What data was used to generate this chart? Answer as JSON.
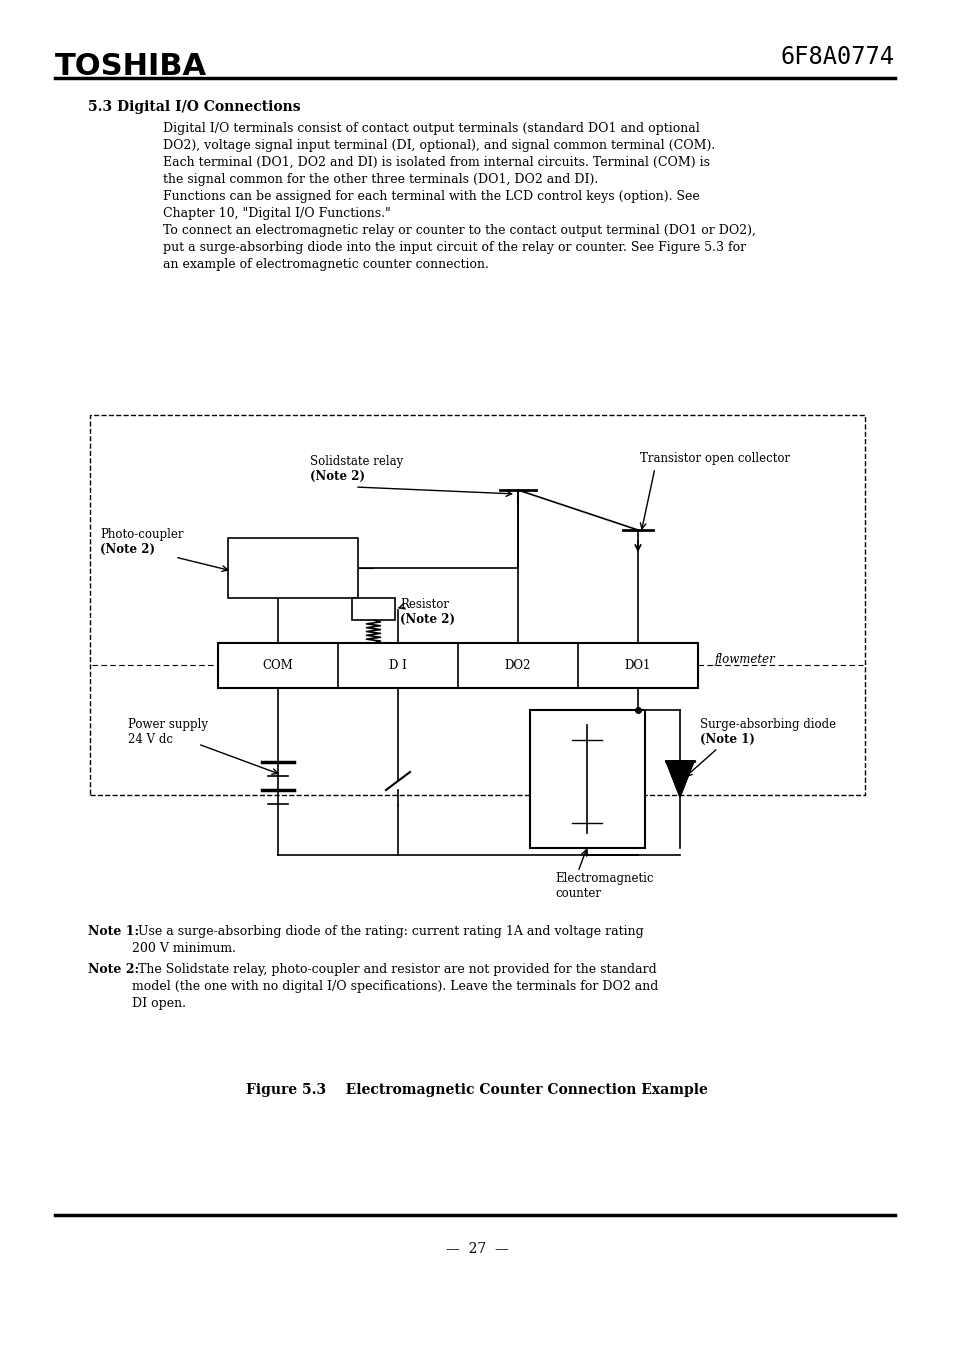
{
  "bg_color": "#ffffff",
  "title_toshiba": "TOSHIBA",
  "title_code": "6F8A0774",
  "section_title": "5.3 Digital I/O Connections",
  "body_text": [
    "Digital I/O terminals consist of contact output terminals (standard DO1 and optional",
    "DO2), voltage signal input terminal (DI, optional), and signal common terminal (COM).",
    "Each terminal (DO1, DO2 and DI) is isolated from internal circuits. Terminal (COM) is",
    "the signal common for the other three terminals (DO1, DO2 and DI).",
    "Functions can be assigned for each terminal with the LCD control keys (option). See",
    "Chapter 10, \"Digital I/O Functions.\"",
    "To connect an electromagnetic relay or counter to the contact output terminal (DO1 or DO2),",
    "put a surge-absorbing diode into the input circuit of the relay or counter. See Figure 5.3 for",
    "an example of electromagnetic counter connection."
  ],
  "note1_bold": "Note 1:",
  "note1_text": " Use a surge-absorbing diode of the rating: current rating 1A and voltage rating",
  "note1_cont": "           200 V minimum.",
  "note2_bold": "Note 2:",
  "note2_text": " The Solidstate relay, photo-coupler and resistor are not provided for the standard",
  "note2_cont1": "           model (the one with no digital I/O specifications). Leave the terminals for DO2 and",
  "note2_cont2": "           DI open.",
  "figure_caption": "Figure 5.3    Electromagnetic Counter Connection Example",
  "page_number": "—  27  —"
}
